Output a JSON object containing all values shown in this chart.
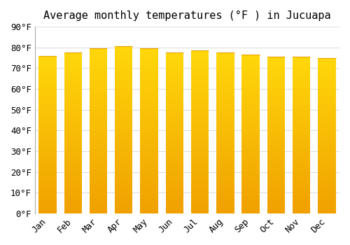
{
  "title": "Average monthly temperatures (°F ) in Jucuapa",
  "months": [
    "Jan",
    "Feb",
    "Mar",
    "Apr",
    "May",
    "Jun",
    "Jul",
    "Aug",
    "Sep",
    "Oct",
    "Nov",
    "Dec"
  ],
  "values": [
    76,
    77.5,
    79.5,
    80.5,
    79.5,
    77.5,
    78.5,
    77.5,
    76.5,
    75.5,
    75.5,
    75
  ],
  "ylim": [
    0,
    90
  ],
  "yticks": [
    0,
    10,
    20,
    30,
    40,
    50,
    60,
    70,
    80,
    90
  ],
  "bar_color_top": "#FFC200",
  "bar_color_bottom": "#FFB300",
  "bar_edge_color": "#E8A000",
  "background_color": "#FFFFFF",
  "grid_color": "#DDDDDD",
  "title_fontsize": 11,
  "tick_fontsize": 9,
  "bar_width": 0.7
}
